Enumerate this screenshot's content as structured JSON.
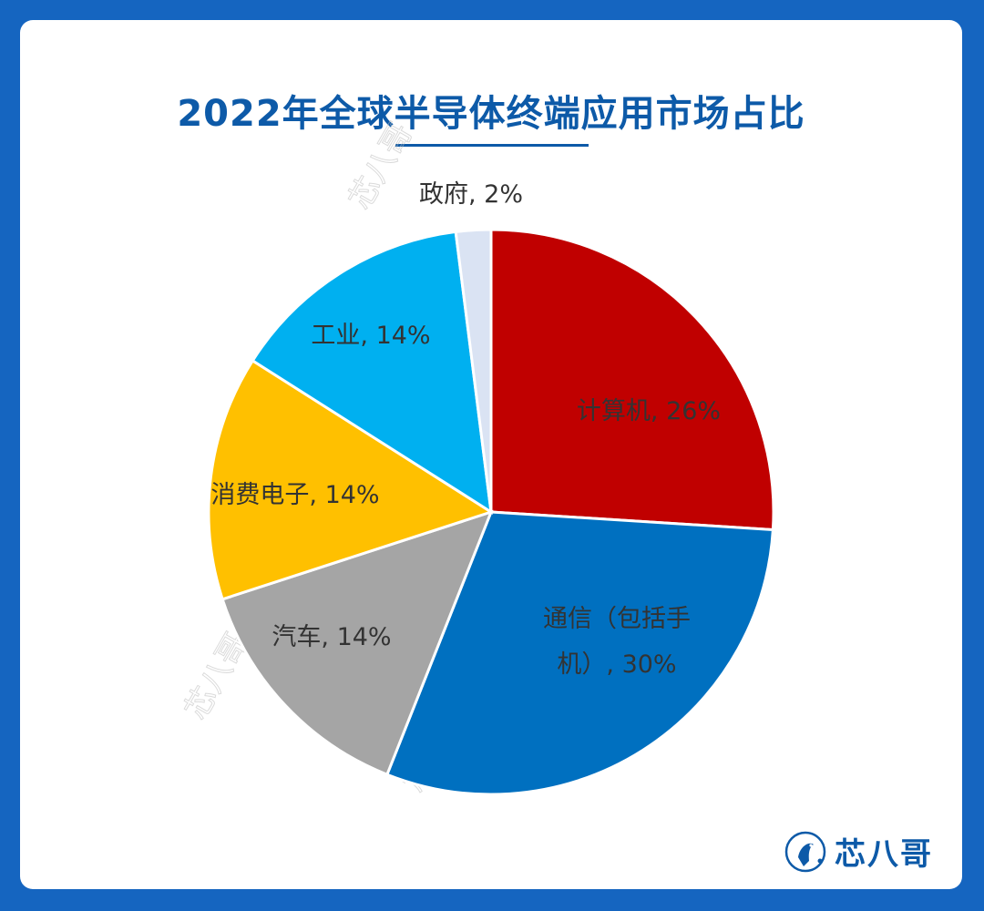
{
  "title": "2022年全球半导体终端应用市场占比",
  "brand": {
    "name": "芯八哥",
    "icon": "bird-logo-icon"
  },
  "chart_data": {
    "type": "pie",
    "title": "2022年全球半导体终端应用市场占比",
    "start": "12 o'clock, clockwise",
    "slices": [
      {
        "label": "计算机",
        "value": 26,
        "display": "计算机, 26%",
        "color": "#c00000"
      },
      {
        "label": "通信（包括手机）",
        "value": 30,
        "display": "通信（包括手 机）, 30%",
        "color": "#0070c0"
      },
      {
        "label": "汽车",
        "value": 14,
        "display": "汽车, 14%",
        "color": "#a5a5a5"
      },
      {
        "label": "消费电子",
        "value": 14,
        "display": "消费电子, 14%",
        "color": "#ffc000"
      },
      {
        "label": "工业",
        "value": 14,
        "display": "工业, 14%",
        "color": "#00b0f0"
      },
      {
        "label": "政府",
        "value": 2,
        "display": "政府, 2%",
        "color": "#dae3f3"
      }
    ],
    "legend": "none (data labels)"
  }
}
